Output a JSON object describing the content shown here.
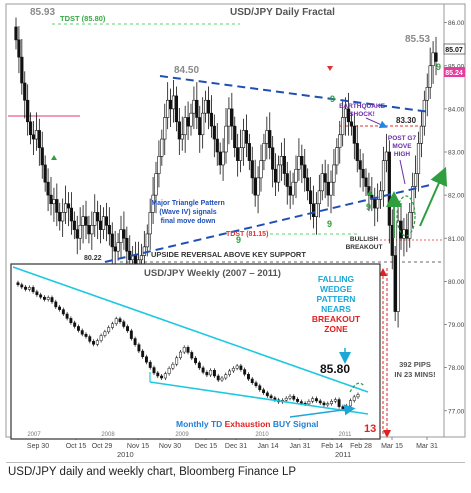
{
  "caption": "USD/JPY daily and weekly chart, Bloomberg Finance LP",
  "chart_data": [
    {
      "type": "candlestick",
      "title": "USD/JPY Daily Fractal",
      "y_ticks": [
        "86.00",
        "85.00",
        "84.00",
        "83.00",
        "82.00",
        "81.00",
        "80.00",
        "79.00",
        "78.00",
        "77.00"
      ],
      "ylim": [
        76.6,
        86.2
      ],
      "x_ticks": [
        "Sep 30",
        "Oct 15",
        "Oct 29",
        "Nov 15",
        "Nov 30",
        "Dec 15",
        "Dec 31",
        "Jan 14",
        "Jan 31",
        "Feb 14",
        "Feb 28",
        "Mar 15",
        "Mar 31"
      ],
      "x_period_labels": [
        "2010",
        "2011"
      ],
      "price_tags": [
        "85.07",
        "85.24"
      ],
      "closes": [
        85.6,
        85.2,
        84.6,
        84.2,
        83.7,
        83.4,
        83.3,
        83.5,
        83.1,
        82.7,
        82.3,
        82.0,
        81.8,
        81.9,
        81.6,
        81.4,
        81.6,
        81.8,
        81.7,
        81.4,
        81.2,
        81.0,
        81.3,
        81.5,
        81.3,
        81.1,
        81.3,
        81.6,
        81.4,
        81.2,
        81.5,
        81.3,
        81.1,
        80.8,
        80.7,
        80.9,
        81.2,
        81.0,
        80.7,
        80.5,
        80.6,
        80.4,
        80.5,
        80.6,
        80.8,
        81.1,
        81.6,
        82.0,
        82.5,
        82.9,
        83.3,
        83.8,
        84.2,
        84.0,
        84.3,
        83.7,
        83.3,
        83.4,
        83.8,
        83.6,
        83.9,
        84.2,
        83.8,
        83.4,
        83.9,
        84.2,
        83.9,
        83.6,
        83.3,
        83.0,
        82.7,
        83.0,
        83.6,
        84.0,
        83.6,
        83.1,
        82.8,
        83.1,
        83.5,
        83.2,
        82.8,
        82.4,
        82.0,
        82.4,
        82.8,
        83.2,
        83.5,
        83.1,
        82.6,
        82.3,
        82.7,
        82.9,
        82.5,
        82.2,
        82.0,
        82.3,
        82.6,
        82.9,
        82.7,
        82.4,
        82.1,
        81.8,
        81.5,
        81.8,
        82.1,
        82.5,
        82.3,
        82.0,
        82.3,
        82.7,
        83.1,
        83.4,
        83.8,
        84.0,
        83.7,
        83.6,
        83.2,
        82.8,
        82.6,
        82.4,
        82.2,
        82.0,
        81.9,
        81.7,
        81.9,
        82.1,
        82.8,
        83.0,
        81.3,
        80.6,
        79.3,
        81.4,
        81.0,
        81.2,
        81.0,
        81.6,
        82.2,
        82.5,
        83.2,
        83.6,
        84.2,
        84.5,
        85.0,
        85.3,
        85.1
      ],
      "annotations": [
        "85.93",
        "84.50",
        "85.53",
        "83.30",
        "TDST (85.80)",
        "TDST (81.15)",
        "Major Triangle Pattern (Wave IV) signals final move down",
        "EARTHQUAKE SHOCK!",
        "POST G7 MOVE HIGH",
        "BULLISH BREAKOUT",
        "UPSIDE REVERSAL ABOVE KEY SUPPORT",
        "80.22",
        "9",
        "9",
        "9",
        "9",
        "9",
        "392 PIPS IN 23 MINS!"
      ]
    },
    {
      "type": "candlestick",
      "title": "USD/JPY Weekly (2007 – 2011)",
      "x_ticks": [
        "2007",
        "2008",
        "2009",
        "2010",
        "2011"
      ],
      "closes": [
        117.2,
        116.5,
        115.8,
        116.4,
        115.1,
        114.2,
        113.5,
        112.8,
        113.4,
        112.1,
        110.6,
        109.8,
        108.5,
        107.2,
        105.9,
        104.8,
        103.6,
        102.5,
        101.8,
        100.4,
        99.5,
        100.6,
        102.1,
        103.2,
        104.5,
        105.6,
        107.1,
        106.2,
        104.8,
        103.5,
        101.2,
        99.4,
        97.5,
        95.8,
        94.2,
        92.6,
        91.0,
        90.1,
        89.5,
        90.8,
        92.4,
        93.6,
        95.5,
        97.2,
        98.6,
        97.1,
        95.4,
        94.0,
        92.5,
        91.2,
        90.4,
        91.8,
        90.1,
        88.9,
        89.5,
        90.5,
        91.6,
        92.4,
        93.1,
        92.0,
        90.6,
        89.2,
        88.1,
        87.2,
        86.0,
        85.1,
        84.2,
        83.6,
        83.0,
        82.4,
        82.9,
        83.5,
        84.1,
        83.2,
        82.5,
        82.0,
        81.8,
        82.6,
        83.4,
        82.7,
        82.1,
        81.5,
        81.9,
        82.6,
        83.1,
        81.0,
        80.4,
        81.2,
        82.8,
        83.9,
        84.6
      ],
      "annotations": [
        "85.80",
        "FALLING WEDGE PATTERN NEARS BREAKOUT ZONE",
        "Monthly TD Exhaustion BUY Signal",
        "13"
      ]
    }
  ]
}
